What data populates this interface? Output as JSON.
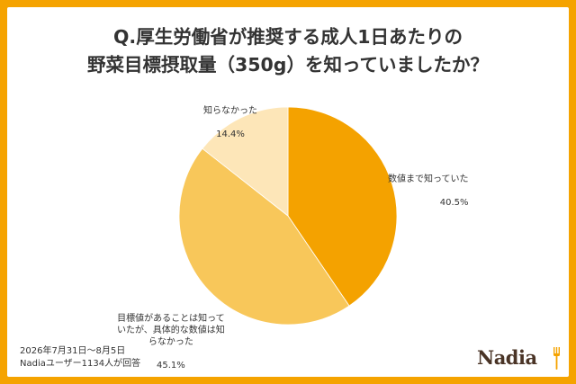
{
  "chart_data": {
    "type": "pie",
    "title_lines": [
      "Q.厚生労働省が推奨する成人1日あたりの",
      "野菜目標摂取量（350g）を知っていましたか？"
    ],
    "slices": [
      {
        "label": "数値まで知っていた",
        "value": 40.5,
        "value_label": "40.5%",
        "color": "#f4a200"
      },
      {
        "label": "目標値があることは知って\nいたが、具体的な数値は知\nらなかった",
        "value": 45.1,
        "value_label": "45.1%",
        "color": "#f8c75a"
      },
      {
        "label": "知らなかった",
        "value": 14.4,
        "value_label": "14.4%",
        "color": "#fde6b8"
      }
    ],
    "start_angle_deg": 0,
    "direction": "clockwise"
  },
  "footer": {
    "date_range": "2026年7月31日〜8月5日",
    "respondents": "Nadiaユーザー1134人が回答"
  },
  "brand": {
    "logo_text": "Nadia",
    "logo_color": "#4a3426",
    "frame_color": "#f5a300"
  }
}
